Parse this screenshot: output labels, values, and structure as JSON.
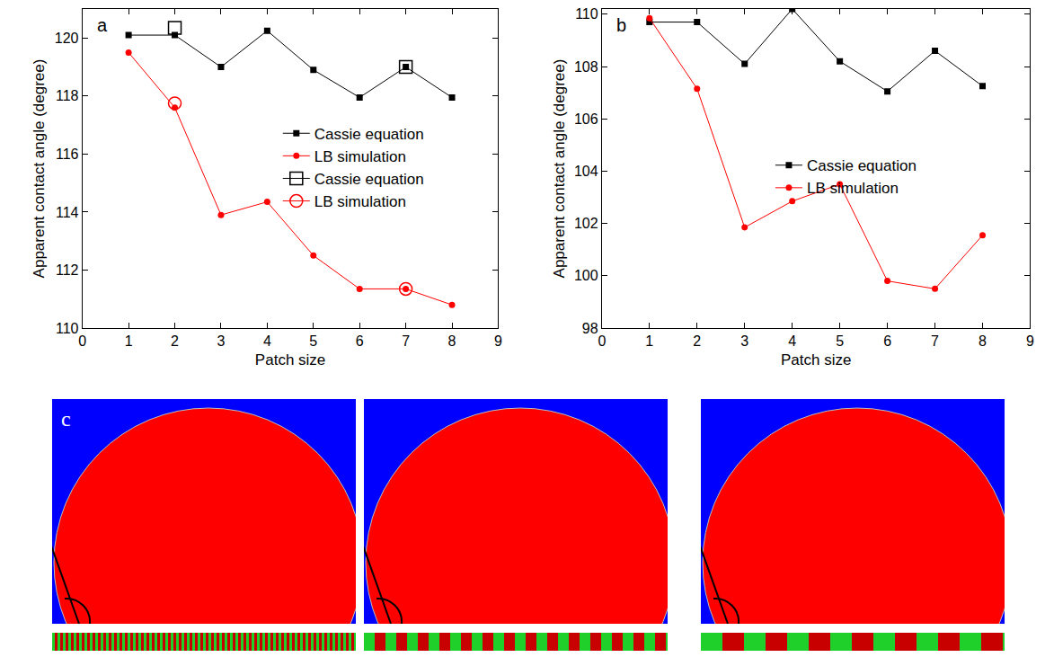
{
  "chart_data": [
    {
      "type": "line",
      "annotations": [
        "a"
      ],
      "x_label": "Patch size",
      "y_label": "Apparent contact angle (degree)",
      "x": [
        1,
        2,
        3,
        4,
        5,
        6,
        7,
        8
      ],
      "series": [
        {
          "name": "Cassie equation",
          "color": "#000000",
          "marker": "square",
          "values": [
            120.1,
            120.1,
            119.0,
            120.25,
            118.9,
            117.95,
            119.0,
            117.95
          ]
        },
        {
          "name": "LB simulation",
          "color": "#ff0000",
          "marker": "circle",
          "values": [
            119.5,
            117.6,
            113.9,
            114.35,
            112.5,
            111.35,
            111.35,
            110.8
          ]
        },
        {
          "name": "Cassie equation",
          "color": "#000000",
          "marker": "open square",
          "values": [
            null,
            120.35,
            null,
            null,
            null,
            null,
            119.0,
            null
          ]
        },
        {
          "name": "LB simulation",
          "color": "#ff0000",
          "marker": "open circle",
          "values": [
            null,
            117.75,
            null,
            null,
            null,
            null,
            111.35,
            null
          ]
        }
      ],
      "xlim": [
        0,
        9
      ],
      "xticks": [
        0,
        1,
        2,
        3,
        4,
        5,
        6,
        7,
        8,
        9
      ],
      "ylim": [
        110,
        121
      ],
      "yticks": [
        110,
        112,
        114,
        116,
        118,
        120
      ],
      "legend": "right",
      "grid": false
    },
    {
      "type": "line",
      "annotations": [
        "b"
      ],
      "x_label": "Patch size",
      "y_label": "Apparent contact angle (degree)",
      "x": [
        1,
        2,
        3,
        4,
        5,
        6,
        7,
        8
      ],
      "series": [
        {
          "name": "Cassie equation",
          "color": "#000000",
          "marker": "square",
          "values": [
            109.7,
            109.7,
            108.1,
            110.2,
            108.2,
            107.05,
            108.6,
            107.25
          ]
        },
        {
          "name": "LB simulation",
          "color": "#ff0000",
          "marker": "circle",
          "values": [
            109.85,
            107.15,
            101.85,
            102.85,
            103.5,
            99.8,
            99.5,
            101.55
          ]
        }
      ],
      "xlim": [
        0,
        9
      ],
      "xticks": [
        0,
        1,
        2,
        3,
        4,
        5,
        6,
        7,
        8,
        9
      ],
      "ylim": [
        98,
        110.2
      ],
      "yticks": [
        98,
        100,
        102,
        104,
        106,
        108,
        110
      ],
      "legend": "top right",
      "grid": false
    }
  ],
  "image_panel": {
    "label": "c"
  }
}
